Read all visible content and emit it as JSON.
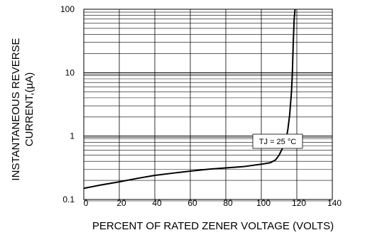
{
  "chart_data": {
    "type": "line",
    "title": "",
    "xlabel": "PERCENT OF RATED ZENER VOLTAGE (VOLTS)",
    "ylabel_lines": [
      "INSTANTANEOUS REVERSE",
      "CURRENT,(µA)"
    ],
    "xlim": [
      0,
      140
    ],
    "ylim": [
      0.1,
      100
    ],
    "yscale": "log",
    "x_ticks": [
      0,
      20,
      40,
      60,
      80,
      100,
      120,
      140
    ],
    "x_tick_labels": [
      "0",
      "20",
      "40",
      "60",
      "80",
      "100",
      "120",
      "140"
    ],
    "y_ticks": [
      0.1,
      1,
      10,
      100
    ],
    "y_tick_labels": [
      "0.1",
      "1",
      "10",
      "100"
    ],
    "grid": true,
    "annotation": "TJ = 25 °C",
    "series": [
      {
        "x": [
          0,
          10,
          20,
          30,
          40,
          50,
          60,
          70,
          80,
          90,
          100,
          105,
          108,
          110,
          112,
          114,
          115,
          116,
          117,
          117.5,
          118,
          118.5,
          119
        ],
        "y": [
          0.15,
          0.17,
          0.19,
          0.215,
          0.24,
          0.26,
          0.28,
          0.3,
          0.315,
          0.33,
          0.36,
          0.38,
          0.42,
          0.5,
          0.65,
          0.9,
          1.3,
          2.2,
          5,
          10,
          30,
          70,
          100
        ]
      }
    ]
  }
}
